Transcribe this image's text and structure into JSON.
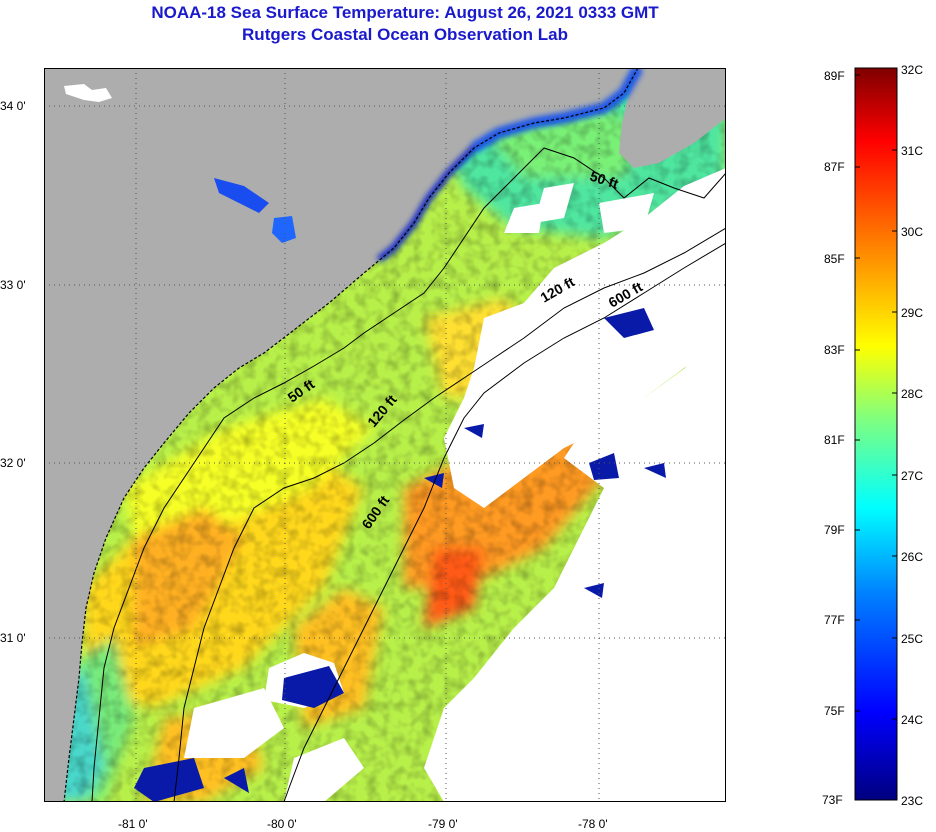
{
  "header": {
    "title_line1": "NOAA-18 Sea Surface Temperature:  August 26, 2021 0333 GMT",
    "title_line2": "Rutgers Coastal Ocean Observation Lab"
  },
  "map": {
    "lat_labels": [
      "34 0'",
      "33 0'",
      "32 0'",
      "31 0'"
    ],
    "lon_labels": [
      "-81 0'",
      "-80 0'",
      "-79 0'",
      "-78 0'"
    ],
    "contour_labels": [
      "50 ft",
      "120 ft",
      "600 ft",
      "50 ft",
      "120 ft",
      "600 ft"
    ],
    "colors": {
      "land": "#adadad",
      "cloud": "#ffffff",
      "contour": "#000000"
    }
  },
  "colorbar": {
    "fahrenheit_labels": [
      "89F",
      "87F",
      "85F",
      "83F",
      "81F",
      "79F",
      "77F",
      "75F",
      "73F"
    ],
    "celsius_labels": [
      "32C",
      "31C",
      "30C",
      "29C",
      "28C",
      "27C",
      "26C",
      "25C",
      "24C",
      "23C"
    ],
    "range_c": [
      23,
      32
    ],
    "gradient_colors": [
      "#00007f",
      "#0000ff",
      "#007fff",
      "#00ffff",
      "#7fff7f",
      "#ffff00",
      "#ff7f00",
      "#ff0000",
      "#7f0000"
    ]
  }
}
